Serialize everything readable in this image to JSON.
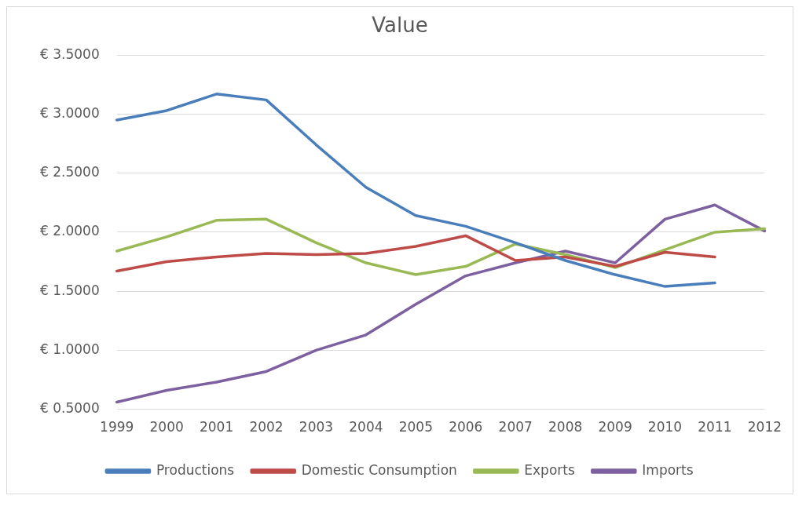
{
  "chart_data": {
    "type": "line",
    "title": "Value",
    "categories": [
      "1999",
      "2000",
      "2001",
      "2002",
      "2003",
      "2004",
      "2005",
      "2006",
      "2007",
      "2008",
      "2009",
      "2010",
      "2011",
      "2012"
    ],
    "series": [
      {
        "name": "Productions",
        "color": "#4a7ebb",
        "values": [
          2.95,
          3.03,
          3.17,
          3.12,
          2.74,
          2.38,
          2.14,
          2.05,
          1.91,
          1.76,
          1.64,
          1.54,
          1.57,
          null
        ]
      },
      {
        "name": "Domestic Consumption",
        "color": "#be4b48",
        "values": [
          1.67,
          1.75,
          1.79,
          1.82,
          1.81,
          1.82,
          1.88,
          1.97,
          1.76,
          1.79,
          1.71,
          1.83,
          1.79,
          null
        ]
      },
      {
        "name": "Exports",
        "color": "#98b954",
        "values": [
          1.84,
          1.96,
          2.1,
          2.11,
          1.91,
          1.74,
          1.64,
          1.71,
          1.9,
          1.81,
          1.7,
          1.85,
          2.0,
          2.03
        ]
      },
      {
        "name": "Imports",
        "color": "#7d60a0",
        "values": [
          0.56,
          0.66,
          0.73,
          0.82,
          1.0,
          1.13,
          1.39,
          1.63,
          1.74,
          1.84,
          1.74,
          2.11,
          2.23,
          2.01
        ]
      }
    ],
    "ylim": [
      0.5,
      3.5
    ],
    "yticks": [
      {
        "value": 0.5,
        "label": "€ 0.5000"
      },
      {
        "value": 1,
        "label": "€ 1.0000"
      },
      {
        "value": 1.5,
        "label": "€ 1.5000"
      },
      {
        "value": 2,
        "label": "€ 2.0000"
      },
      {
        "value": 2.5,
        "label": "€ 2.5000"
      },
      {
        "value": 3,
        "label": "€ 3.0000"
      },
      {
        "value": 3.5,
        "label": "€ 3.5000"
      }
    ],
    "grid": "y",
    "legend": "bottom",
    "marker": "none",
    "line_style": "solid"
  }
}
